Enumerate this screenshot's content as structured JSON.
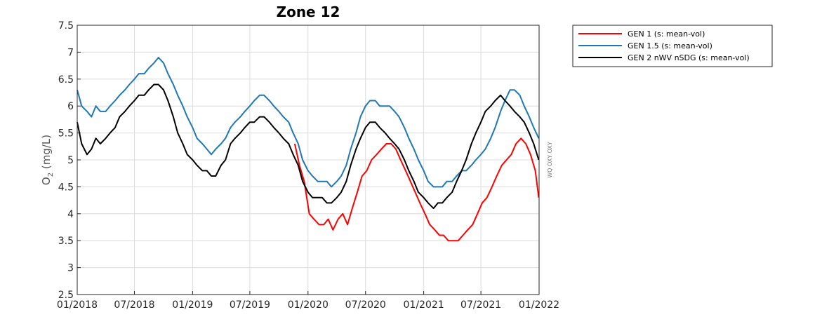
{
  "chart_data": {
    "type": "line",
    "title": "Zone 12",
    "ylabel": "O2 (mg/L)",
    "ylabel_main": "O",
    "ylabel_sub": "2",
    "ylabel_unit": " (mg/L)",
    "side_label": "WQ OXY OXY",
    "ylim": [
      2.5,
      7.5
    ],
    "yticks": [
      "2.5",
      "3",
      "3.5",
      "4",
      "4.5",
      "5",
      "5.5",
      "6",
      "6.5",
      "7",
      "7.5"
    ],
    "x_range": [
      "2018-01-01",
      "2022-01-01"
    ],
    "xticks": [
      "01/2018",
      "07/2018",
      "01/2019",
      "07/2019",
      "01/2020",
      "07/2020",
      "01/2021",
      "07/2021",
      "01/2022"
    ],
    "grid": true,
    "legend_position": "outside-right-top",
    "series": [
      {
        "name": "GEN 1 (s: mean-vol)",
        "color": "#ff0000",
        "x": [
          "2019-11-20",
          "2019-12-05",
          "2019-12-20",
          "2020-01-05",
          "2020-01-20",
          "2020-02-05",
          "2020-02-20",
          "2020-03-05",
          "2020-03-20",
          "2020-04-05",
          "2020-04-20",
          "2020-05-05",
          "2020-05-20",
          "2020-06-05",
          "2020-06-20",
          "2020-07-05",
          "2020-07-20",
          "2020-08-05",
          "2020-08-20",
          "2020-09-05",
          "2020-09-20",
          "2020-10-05",
          "2020-10-20",
          "2020-11-05",
          "2020-11-20",
          "2020-12-05",
          "2020-12-20",
          "2021-01-05",
          "2021-01-20",
          "2021-02-05",
          "2021-02-20",
          "2021-03-05",
          "2021-03-20",
          "2021-04-05",
          "2021-04-20",
          "2021-05-05",
          "2021-05-20",
          "2021-06-05",
          "2021-06-20",
          "2021-07-05",
          "2021-07-20",
          "2021-08-05",
          "2021-08-20",
          "2021-09-05",
          "2021-09-20",
          "2021-10-05",
          "2021-10-20",
          "2021-11-05",
          "2021-11-20",
          "2021-12-05",
          "2021-12-20",
          "2021-12-31"
        ],
        "y": [
          5.3,
          4.9,
          4.6,
          4.0,
          3.9,
          3.8,
          3.8,
          3.9,
          3.7,
          3.9,
          4.0,
          3.8,
          4.1,
          4.4,
          4.7,
          4.8,
          5.0,
          5.1,
          5.2,
          5.3,
          5.3,
          5.2,
          5.0,
          4.8,
          4.6,
          4.4,
          4.2,
          4.0,
          3.8,
          3.7,
          3.6,
          3.6,
          3.5,
          3.5,
          3.5,
          3.6,
          3.7,
          3.8,
          4.0,
          4.2,
          4.3,
          4.5,
          4.7,
          4.9,
          5.0,
          5.1,
          5.3,
          5.4,
          5.3,
          5.1,
          4.8,
          4.3
        ]
      },
      {
        "name": "GEN 1.5 (s: mean-vol)",
        "color": "#1f77b4",
        "x": [
          "2018-01-01",
          "2018-01-15",
          "2018-02-01",
          "2018-02-15",
          "2018-03-01",
          "2018-03-15",
          "2018-04-01",
          "2018-04-15",
          "2018-05-01",
          "2018-05-15",
          "2018-06-01",
          "2018-06-15",
          "2018-07-01",
          "2018-07-15",
          "2018-08-01",
          "2018-08-15",
          "2018-09-01",
          "2018-09-15",
          "2018-10-01",
          "2018-10-15",
          "2018-11-01",
          "2018-11-15",
          "2018-12-01",
          "2018-12-15",
          "2019-01-01",
          "2019-01-15",
          "2019-02-01",
          "2019-02-15",
          "2019-03-01",
          "2019-03-15",
          "2019-04-01",
          "2019-04-15",
          "2019-05-01",
          "2019-05-15",
          "2019-06-01",
          "2019-06-15",
          "2019-07-01",
          "2019-07-15",
          "2019-08-01",
          "2019-08-15",
          "2019-09-01",
          "2019-09-15",
          "2019-10-01",
          "2019-10-15",
          "2019-11-01",
          "2019-11-15",
          "2019-12-01",
          "2019-12-15",
          "2020-01-01",
          "2020-01-15",
          "2020-02-01",
          "2020-02-15",
          "2020-03-01",
          "2020-03-15",
          "2020-04-01",
          "2020-04-15",
          "2020-05-01",
          "2020-05-15",
          "2020-06-01",
          "2020-06-15",
          "2020-07-01",
          "2020-07-15",
          "2020-08-01",
          "2020-08-15",
          "2020-09-01",
          "2020-09-15",
          "2020-10-01",
          "2020-10-15",
          "2020-11-01",
          "2020-11-15",
          "2020-12-01",
          "2020-12-15",
          "2021-01-01",
          "2021-01-15",
          "2021-02-01",
          "2021-02-15",
          "2021-03-01",
          "2021-03-15",
          "2021-04-01",
          "2021-04-15",
          "2021-05-01",
          "2021-05-15",
          "2021-06-01",
          "2021-06-15",
          "2021-07-01",
          "2021-07-15",
          "2021-08-01",
          "2021-08-15",
          "2021-09-01",
          "2021-09-15",
          "2021-10-01",
          "2021-10-15",
          "2021-11-01",
          "2021-11-15",
          "2021-12-01",
          "2021-12-15",
          "2021-12-31"
        ],
        "y": [
          6.3,
          6.0,
          5.9,
          5.8,
          6.0,
          5.9,
          5.9,
          6.0,
          6.1,
          6.2,
          6.3,
          6.4,
          6.5,
          6.6,
          6.6,
          6.7,
          6.8,
          6.9,
          6.8,
          6.6,
          6.4,
          6.2,
          6.0,
          5.8,
          5.6,
          5.4,
          5.3,
          5.2,
          5.1,
          5.2,
          5.3,
          5.4,
          5.6,
          5.7,
          5.8,
          5.9,
          6.0,
          6.1,
          6.2,
          6.2,
          6.1,
          6.0,
          5.9,
          5.8,
          5.7,
          5.5,
          5.3,
          5.0,
          4.8,
          4.7,
          4.6,
          4.6,
          4.6,
          4.5,
          4.6,
          4.7,
          4.9,
          5.2,
          5.5,
          5.8,
          6.0,
          6.1,
          6.1,
          6.0,
          6.0,
          6.0,
          5.9,
          5.8,
          5.6,
          5.4,
          5.2,
          5.0,
          4.8,
          4.6,
          4.5,
          4.5,
          4.5,
          4.6,
          4.6,
          4.7,
          4.8,
          4.8,
          4.9,
          5.0,
          5.1,
          5.2,
          5.4,
          5.6,
          5.9,
          6.1,
          6.3,
          6.3,
          6.2,
          6.0,
          5.8,
          5.6,
          5.4
        ]
      },
      {
        "name": "GEN 2 nWV nSDG (s: mean-vol)",
        "color": "#000000",
        "x": [
          "2018-01-01",
          "2018-01-15",
          "2018-02-01",
          "2018-02-15",
          "2018-03-01",
          "2018-03-15",
          "2018-04-01",
          "2018-04-15",
          "2018-05-01",
          "2018-05-15",
          "2018-06-01",
          "2018-06-15",
          "2018-07-01",
          "2018-07-15",
          "2018-08-01",
          "2018-08-15",
          "2018-09-01",
          "2018-09-15",
          "2018-10-01",
          "2018-10-15",
          "2018-11-01",
          "2018-11-15",
          "2018-12-01",
          "2018-12-15",
          "2019-01-01",
          "2019-01-15",
          "2019-02-01",
          "2019-02-15",
          "2019-03-01",
          "2019-03-15",
          "2019-04-01",
          "2019-04-15",
          "2019-05-01",
          "2019-05-15",
          "2019-06-01",
          "2019-06-15",
          "2019-07-01",
          "2019-07-15",
          "2019-08-01",
          "2019-08-15",
          "2019-09-01",
          "2019-09-15",
          "2019-10-01",
          "2019-10-15",
          "2019-11-01",
          "2019-11-15",
          "2019-12-01",
          "2019-12-15",
          "2020-01-01",
          "2020-01-15",
          "2020-02-01",
          "2020-02-15",
          "2020-03-01",
          "2020-03-15",
          "2020-04-01",
          "2020-04-15",
          "2020-05-01",
          "2020-05-15",
          "2020-06-01",
          "2020-06-15",
          "2020-07-01",
          "2020-07-15",
          "2020-08-01",
          "2020-08-15",
          "2020-09-01",
          "2020-09-15",
          "2020-10-01",
          "2020-10-15",
          "2020-11-01",
          "2020-11-15",
          "2020-12-01",
          "2020-12-15",
          "2021-01-01",
          "2021-01-15",
          "2021-02-01",
          "2021-02-15",
          "2021-03-01",
          "2021-03-15",
          "2021-04-01",
          "2021-04-15",
          "2021-05-01",
          "2021-05-15",
          "2021-06-01",
          "2021-06-15",
          "2021-07-01",
          "2021-07-15",
          "2021-08-01",
          "2021-08-15",
          "2021-09-01",
          "2021-09-15",
          "2021-10-01",
          "2021-10-15",
          "2021-11-01",
          "2021-11-15",
          "2021-12-01",
          "2021-12-15",
          "2021-12-31"
        ],
        "y": [
          5.7,
          5.3,
          5.1,
          5.2,
          5.4,
          5.3,
          5.4,
          5.5,
          5.6,
          5.8,
          5.9,
          6.0,
          6.1,
          6.2,
          6.2,
          6.3,
          6.4,
          6.4,
          6.3,
          6.1,
          5.8,
          5.5,
          5.3,
          5.1,
          5.0,
          4.9,
          4.8,
          4.8,
          4.7,
          4.7,
          4.9,
          5.0,
          5.3,
          5.4,
          5.5,
          5.6,
          5.7,
          5.7,
          5.8,
          5.8,
          5.7,
          5.6,
          5.5,
          5.4,
          5.3,
          5.1,
          4.9,
          4.6,
          4.4,
          4.3,
          4.3,
          4.3,
          4.2,
          4.2,
          4.3,
          4.4,
          4.6,
          4.9,
          5.2,
          5.4,
          5.6,
          5.7,
          5.7,
          5.6,
          5.5,
          5.4,
          5.3,
          5.2,
          5.0,
          4.8,
          4.6,
          4.4,
          4.3,
          4.2,
          4.1,
          4.2,
          4.2,
          4.3,
          4.4,
          4.6,
          4.8,
          5.0,
          5.3,
          5.5,
          5.7,
          5.9,
          6.0,
          6.1,
          6.2,
          6.1,
          6.0,
          5.9,
          5.8,
          5.7,
          5.5,
          5.3,
          5.0
        ]
      }
    ]
  }
}
